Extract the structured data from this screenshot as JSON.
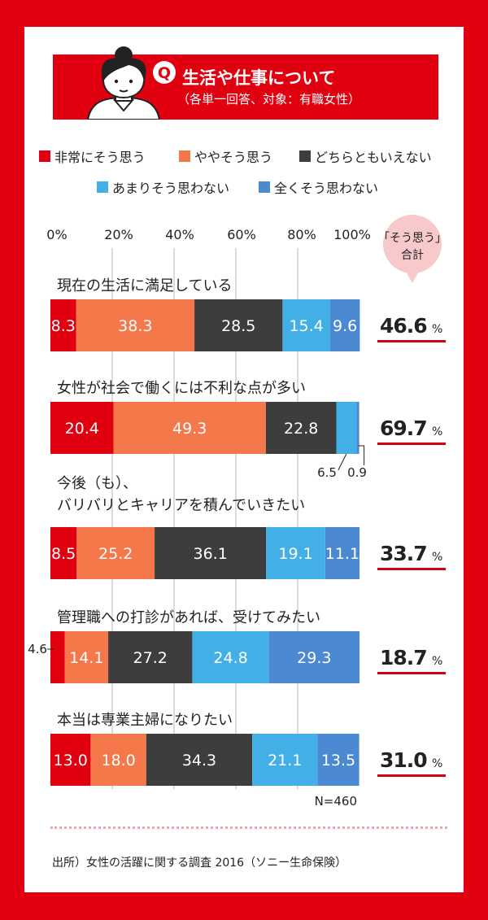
{
  "header": {
    "q_label": "Q",
    "title": "生活や仕事について",
    "subtitle": "（各単一回答、対象：有職女性）"
  },
  "colors": {
    "brand_red": "#e0000f",
    "total_circle": "#f8c9cb",
    "total_underline": "#d10015"
  },
  "legend": [
    {
      "label": "非常にそう思う",
      "color": "#e0000f"
    },
    {
      "label": "ややそう思う",
      "color": "#f4784a"
    },
    {
      "label": "どちらともいえない",
      "color": "#3d3d3d"
    },
    {
      "label": "あまりそう思わない",
      "color": "#42b0e6"
    },
    {
      "label": "全くそう思わない",
      "color": "#4b8ad2"
    }
  ],
  "total_header": [
    "「そう思う」",
    "合計"
  ],
  "chart_data": {
    "type": "bar",
    "orientation": "horizontal",
    "stacked": true,
    "xlim": [
      0,
      100
    ],
    "x_ticks": [
      "0%",
      "20%",
      "40%",
      "60%",
      "80%",
      "100%"
    ],
    "categories": [
      [
        "現在の生活に満足している"
      ],
      [
        "女性が社会で働くには不利な点が多い"
      ],
      [
        "今後（も）、",
        "バリバリとキャリアを積んでいきたい"
      ],
      [
        "管理職への打診があれば、受けてみたい"
      ],
      [
        "本当は専業主婦になりたい"
      ]
    ],
    "series": [
      {
        "name": "非常にそう思う",
        "values": [
          8.3,
          20.4,
          8.5,
          4.6,
          13.0
        ],
        "labels": [
          "8.3",
          "20.4",
          "8.5",
          "4.6",
          "13.0"
        ]
      },
      {
        "name": "ややそう思う",
        "values": [
          38.3,
          49.3,
          25.2,
          14.1,
          18.0
        ],
        "labels": [
          "38.3",
          "49.3",
          "25.2",
          "14.1",
          "18.0"
        ]
      },
      {
        "name": "どちらともいえない",
        "values": [
          28.5,
          22.8,
          36.1,
          27.2,
          34.3
        ],
        "labels": [
          "28.5",
          "22.8",
          "36.1",
          "27.2",
          "34.3"
        ]
      },
      {
        "name": "あまりそう思わない",
        "values": [
          15.4,
          6.5,
          19.1,
          24.8,
          21.1
        ],
        "labels": [
          "15.4",
          "6.5",
          "19.1",
          "24.8",
          "21.1"
        ]
      },
      {
        "name": "全くそう思わない",
        "values": [
          9.6,
          0.9,
          11.1,
          29.3,
          13.5
        ],
        "labels": [
          "9.6",
          "0.9",
          "11.1",
          "29.3",
          "13.5"
        ]
      }
    ],
    "totals": [
      {
        "value": "46.6",
        "unit": "%"
      },
      {
        "value": "69.7",
        "unit": "%"
      },
      {
        "value": "33.7",
        "unit": "%"
      },
      {
        "value": "18.7",
        "unit": "%"
      },
      {
        "value": "31.0",
        "unit": "%"
      }
    ],
    "n_label": "N=460"
  },
  "source": "出所）女性の活躍に関する調査 2016（ソニー生命保険）"
}
